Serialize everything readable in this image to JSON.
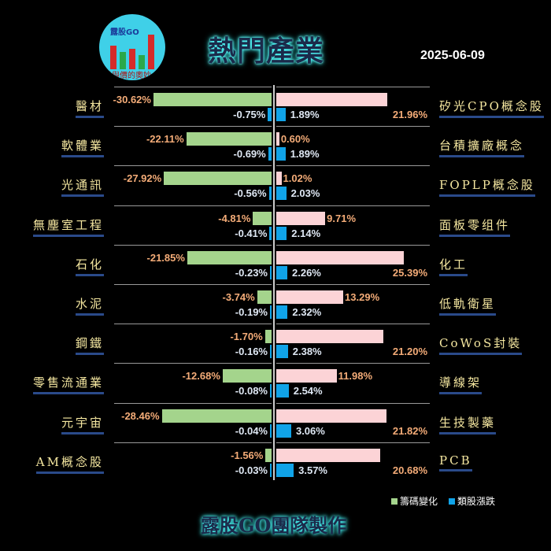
{
  "header": {
    "logo_text": "露股GO",
    "logo_slogan": "量與價的奧妙",
    "title": "熱門產業",
    "date": "2025-06-09"
  },
  "colors": {
    "chip": "#a4d48c",
    "chip_pos": "#fcd3d6",
    "sector": "#10a3e8"
  },
  "legend": {
    "chip_label": "籌碼變化",
    "sector_label": "類股漲跌"
  },
  "footer": "露股GO團隊製作",
  "left": [
    {
      "name": "醫材",
      "chip": "-30.62%",
      "chip_v": -30.62,
      "chg": "-0.75%",
      "chg_v": -0.75
    },
    {
      "name": "軟體業",
      "chip": "-22.11%",
      "chip_v": -22.11,
      "chg": "-0.69%",
      "chg_v": -0.69
    },
    {
      "name": "光通訊",
      "chip": "-27.92%",
      "chip_v": -27.92,
      "chg": "-0.56%",
      "chg_v": -0.56
    },
    {
      "name": "無塵室工程",
      "chip": "-4.81%",
      "chip_v": -4.81,
      "chg": "-0.41%",
      "chg_v": -0.41
    },
    {
      "name": "石化",
      "chip": "-21.85%",
      "chip_v": -21.85,
      "chg": "-0.23%",
      "chg_v": -0.23
    },
    {
      "name": "水泥",
      "chip": "-3.74%",
      "chip_v": -3.74,
      "chg": "-0.19%",
      "chg_v": -0.19
    },
    {
      "name": "鋼鐵",
      "chip": "-1.70%",
      "chip_v": -1.7,
      "chg": "-0.16%",
      "chg_v": -0.16
    },
    {
      "name": "零售流通業",
      "chip": "-12.68%",
      "chip_v": -12.68,
      "chg": "-0.08%",
      "chg_v": -0.08
    },
    {
      "name": "元宇宙",
      "chip": "-28.46%",
      "chip_v": -28.46,
      "chg": "-0.04%",
      "chg_v": -0.04
    },
    {
      "name": "AM概念股",
      "chip": "-1.56%",
      "chip_v": -1.56,
      "chg": "-0.03%",
      "chg_v": -0.03
    }
  ],
  "right": [
    {
      "name": "矽光CPO概念股",
      "chip": "21.96%",
      "chip_v": 21.96,
      "chg": "1.89%",
      "chg_v": 1.89
    },
    {
      "name": "台積擴廠概念",
      "chip": "0.60%",
      "chip_v": 0.6,
      "chg": "1.89%",
      "chg_v": 1.89
    },
    {
      "name": "FOPLP概念股",
      "chip": "1.02%",
      "chip_v": 1.02,
      "chg": "2.03%",
      "chg_v": 2.03
    },
    {
      "name": "面板零组件",
      "chip": "9.71%",
      "chip_v": 9.71,
      "chg": "2.14%",
      "chg_v": 2.14
    },
    {
      "name": "化工",
      "chip": "25.39%",
      "chip_v": 25.39,
      "chg": "2.26%",
      "chg_v": 2.26
    },
    {
      "name": "低軌衛星",
      "chip": "13.29%",
      "chip_v": 13.29,
      "chg": "2.32%",
      "chg_v": 2.32
    },
    {
      "name": "CoWoS封裝",
      "chip": "21.20%",
      "chip_v": 21.2,
      "chg": "2.38%",
      "chg_v": 2.38
    },
    {
      "name": "導線架",
      "chip": "11.98%",
      "chip_v": 11.98,
      "chg": "2.54%",
      "chg_v": 2.54
    },
    {
      "name": "生技製藥",
      "chip": "21.82%",
      "chip_v": 21.82,
      "chg": "3.06%",
      "chg_v": 3.06
    },
    {
      "name": "PCB",
      "chip": "20.68%",
      "chip_v": 20.68,
      "chg": "3.57%",
      "chg_v": 3.57
    }
  ]
}
